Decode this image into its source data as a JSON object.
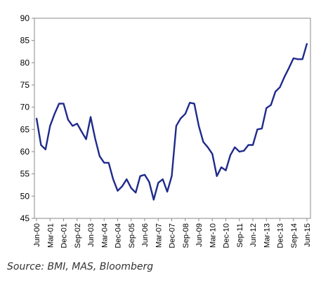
{
  "chart_data": {
    "type": "line",
    "title": "",
    "xlabel": "",
    "ylabel": "",
    "ylim": [
      45,
      90
    ],
    "yticks": [
      45,
      50,
      55,
      60,
      65,
      70,
      75,
      80,
      85,
      90
    ],
    "grid": false,
    "tick_labels": [
      "Jun-00",
      "Mar-01",
      "Dec-01",
      "Sep-02",
      "Jun-03",
      "Mar-04",
      "Dec-04",
      "Sep-05",
      "Jun-06",
      "Mar-07",
      "Dec-07",
      "Sep-08",
      "Jun-09",
      "Mar-10",
      "Dec-10",
      "Sep-11",
      "Jun-12",
      "Mar-13",
      "Dec-13",
      "Sep-14",
      "Jun-15"
    ],
    "series": [
      {
        "color": "#1f2a8c",
        "points": [
          [
            "Jun-00",
            67.5
          ],
          [
            "Sep-00",
            61.5
          ],
          [
            "Dec-00",
            60.5
          ],
          [
            "Mar-01",
            65.8
          ],
          [
            "Jun-01",
            68.5
          ],
          [
            "Sep-01",
            70.8
          ],
          [
            "Dec-01",
            70.8
          ],
          [
            "Mar-02",
            67.2
          ],
          [
            "Jun-02",
            65.8
          ],
          [
            "Sep-02",
            66.3
          ],
          [
            "Dec-02",
            64.5
          ],
          [
            "Mar-03",
            62.8
          ],
          [
            "Jun-03",
            67.8
          ],
          [
            "Sep-03",
            63.0
          ],
          [
            "Dec-03",
            59.0
          ],
          [
            "Mar-04",
            57.5
          ],
          [
            "Jun-04",
            57.5
          ],
          [
            "Sep-04",
            53.8
          ],
          [
            "Dec-04",
            51.2
          ],
          [
            "Mar-05",
            52.2
          ],
          [
            "Jun-05",
            53.8
          ],
          [
            "Sep-05",
            51.8
          ],
          [
            "Dec-05",
            50.8
          ],
          [
            "Mar-06",
            54.5
          ],
          [
            "Jun-06",
            54.8
          ],
          [
            "Sep-06",
            53.2
          ],
          [
            "Dec-06",
            49.2
          ],
          [
            "Mar-07",
            53.0
          ],
          [
            "Jun-07",
            53.8
          ],
          [
            "Sep-07",
            51.0
          ],
          [
            "Dec-07",
            54.5
          ],
          [
            "Mar-08",
            65.8
          ],
          [
            "Jun-08",
            67.5
          ],
          [
            "Sep-08",
            68.5
          ],
          [
            "Dec-08",
            71.0
          ],
          [
            "Mar-09",
            70.8
          ],
          [
            "Jun-09",
            65.8
          ],
          [
            "Sep-09",
            62.2
          ],
          [
            "Dec-09",
            61.0
          ],
          [
            "Mar-10",
            59.5
          ],
          [
            "Jun-10",
            54.5
          ],
          [
            "Sep-10",
            56.5
          ],
          [
            "Dec-10",
            55.8
          ],
          [
            "Mar-11",
            59.2
          ],
          [
            "Jun-11",
            61.0
          ],
          [
            "Sep-11",
            60.0
          ],
          [
            "Dec-11",
            60.2
          ],
          [
            "Mar-12",
            61.5
          ],
          [
            "Jun-12",
            61.5
          ],
          [
            "Sep-12",
            65.0
          ],
          [
            "Dec-12",
            65.2
          ],
          [
            "Mar-13",
            69.8
          ],
          [
            "Jun-13",
            70.5
          ],
          [
            "Sep-13",
            73.5
          ],
          [
            "Dec-13",
            74.5
          ],
          [
            "Mar-14",
            76.8
          ],
          [
            "Jun-14",
            78.8
          ],
          [
            "Sep-14",
            81.0
          ],
          [
            "Dec-14",
            80.8
          ],
          [
            "Mar-15",
            80.8
          ],
          [
            "Jun-15",
            84.3
          ]
        ]
      }
    ]
  },
  "source_text": "Source: BMI, MAS, Bloomberg"
}
